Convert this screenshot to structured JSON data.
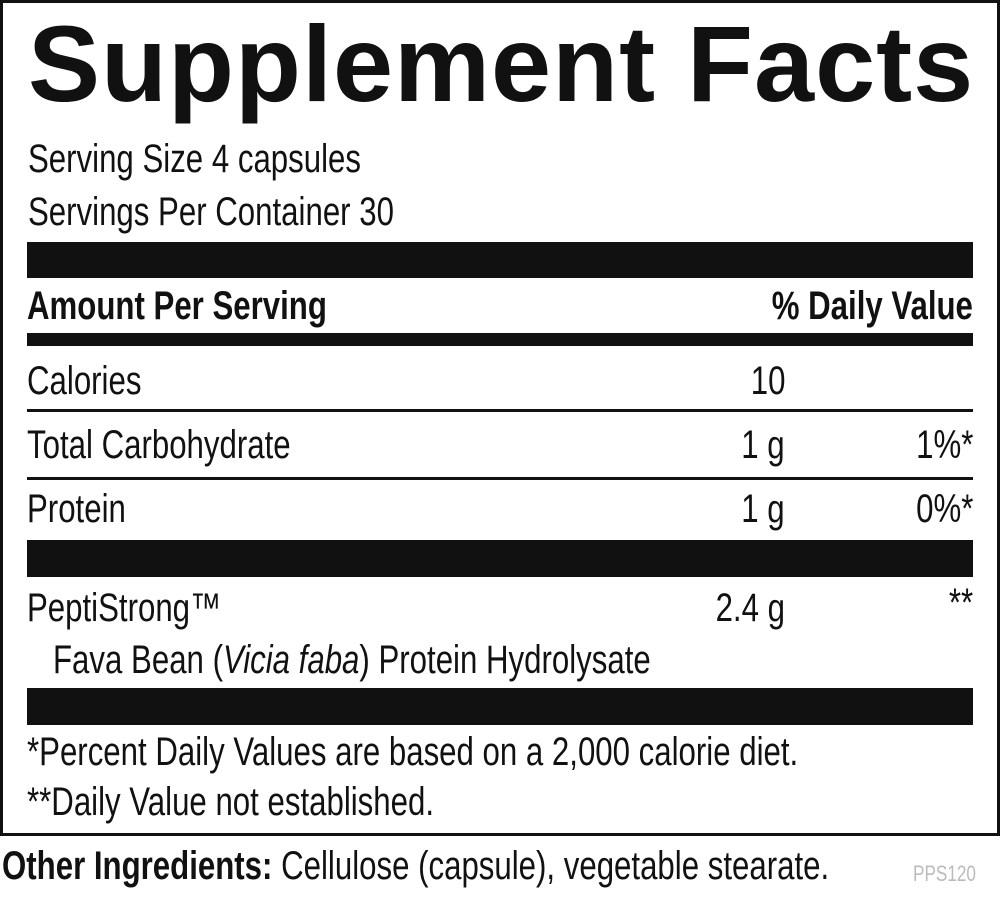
{
  "title": "Supplement Facts",
  "serving_size": "Serving Size 4 capsules",
  "servings_per_container": "Servings Per Container 30",
  "header": {
    "amount_per_serving": "Amount Per Serving",
    "daily_value": "% Daily Value"
  },
  "rows": [
    {
      "name": "Calories",
      "amount": "10",
      "dv": ""
    },
    {
      "name": "Total Carbohydrate",
      "amount": "1 g",
      "dv": "1%*"
    },
    {
      "name": "Protein",
      "amount": "1 g",
      "dv": "0%*"
    }
  ],
  "ingredient": {
    "name": "PeptiStrong™",
    "amount": "2.4 g",
    "dv": "**",
    "sub_prefix": "Fava Bean (",
    "sub_italic": "Vicia faba",
    "sub_suffix": ") Protein Hydrolysate"
  },
  "footnotes": [
    "*Percent Daily Values are based on a 2,000 calorie diet.",
    "**Daily Value not established."
  ],
  "other_ingredients": {
    "label": "Other Ingredients:",
    "text": " Cellulose (capsule), vegetable stearate."
  },
  "code": "PPS120"
}
